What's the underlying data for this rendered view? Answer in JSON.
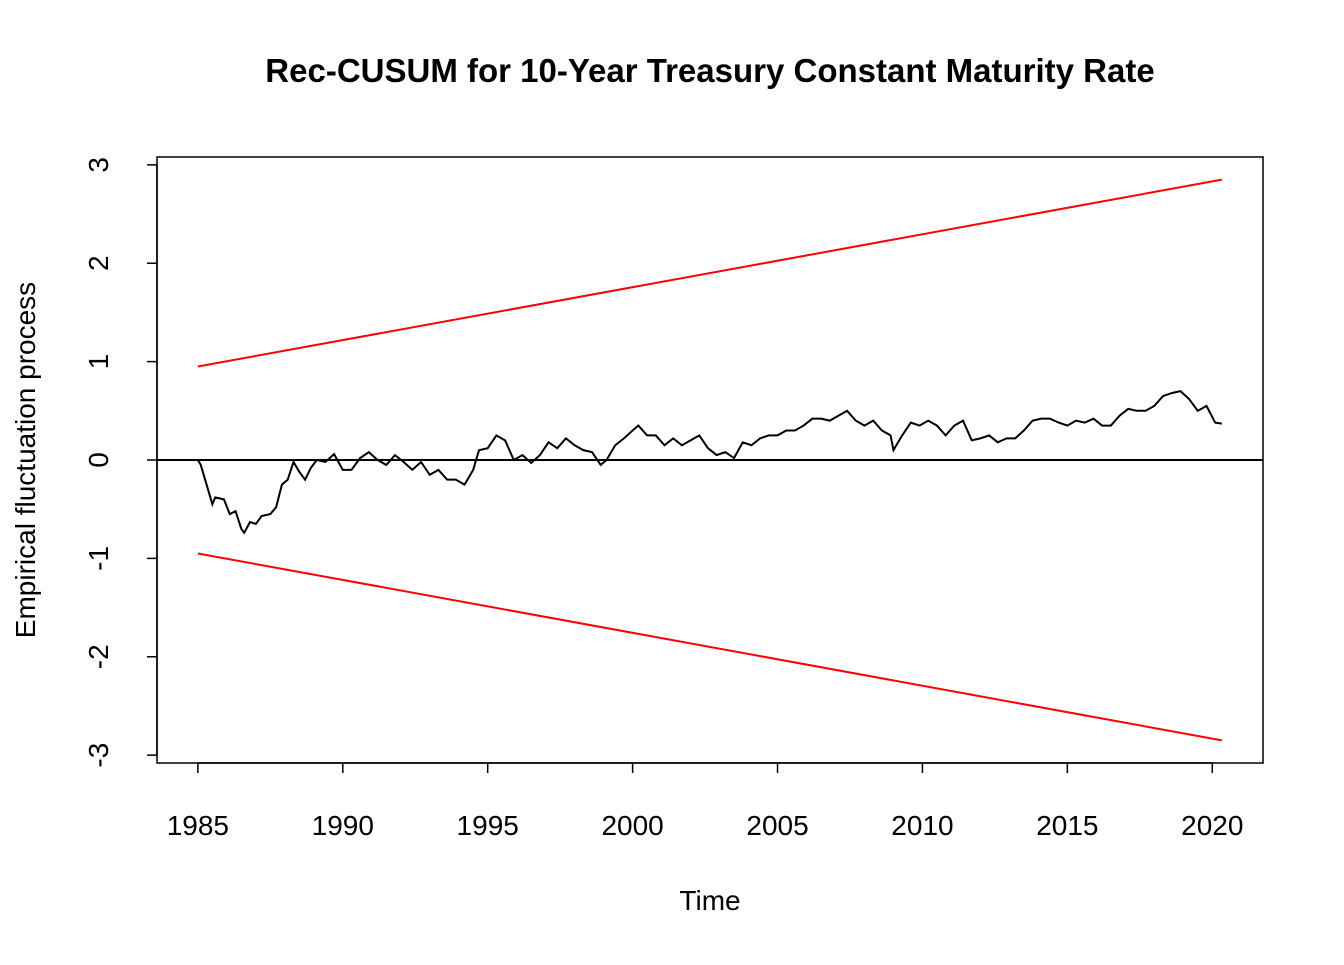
{
  "chart_data": {
    "type": "line",
    "title": "Rec-CUSUM for 10-Year Treasury Constant Maturity Rate",
    "x_label": "Time",
    "y_label": "Empirical fluctuation process",
    "xlim": [
      1983.59,
      2021.75
    ],
    "ylim": [
      -3.08,
      3.08
    ],
    "xticks": [
      1985,
      1990,
      1995,
      2000,
      2005,
      2010,
      2015,
      2020
    ],
    "yticks": [
      -3,
      -2,
      -1,
      0,
      1,
      2,
      3
    ],
    "hline": 0,
    "series": [
      {
        "color": "#000000",
        "x": [
          1985.0,
          1985.1,
          1985.3,
          1985.5,
          1985.6,
          1985.9,
          1986.1,
          1986.3,
          1986.5,
          1986.6,
          1986.8,
          1987.0,
          1987.2,
          1987.5,
          1987.7,
          1987.9,
          1988.1,
          1988.3,
          1988.5,
          1988.7,
          1988.9,
          1989.1,
          1989.4,
          1989.7,
          1990.0,
          1990.3,
          1990.6,
          1990.9,
          1991.2,
          1991.5,
          1991.8,
          1992.1,
          1992.4,
          1992.7,
          1993.0,
          1993.3,
          1993.6,
          1993.9,
          1994.2,
          1994.5,
          1994.7,
          1995.0,
          1995.3,
          1995.6,
          1995.9,
          1996.2,
          1996.5,
          1996.8,
          1997.1,
          1997.4,
          1997.7,
          1998.0,
          1998.3,
          1998.6,
          1998.9,
          1999.1,
          1999.4,
          1999.7,
          2000.0,
          2000.2,
          2000.5,
          2000.8,
          2001.1,
          2001.4,
          2001.7,
          2002.0,
          2002.3,
          2002.6,
          2002.9,
          2003.2,
          2003.5,
          2003.8,
          2004.1,
          2004.4,
          2004.7,
          2005.0,
          2005.3,
          2005.6,
          2005.9,
          2006.2,
          2006.5,
          2006.8,
          2007.1,
          2007.4,
          2007.7,
          2008.0,
          2008.3,
          2008.6,
          2008.9,
          2009.0,
          2009.3,
          2009.6,
          2009.9,
          2010.2,
          2010.5,
          2010.8,
          2011.1,
          2011.4,
          2011.7,
          2012.0,
          2012.3,
          2012.6,
          2012.9,
          2013.2,
          2013.5,
          2013.8,
          2014.1,
          2014.4,
          2014.7,
          2015.0,
          2015.3,
          2015.6,
          2015.9,
          2016.2,
          2016.5,
          2016.8,
          2017.1,
          2017.4,
          2017.7,
          2018.0,
          2018.3,
          2018.6,
          2018.9,
          2019.2,
          2019.5,
          2019.8,
          2020.1,
          2020.33
        ],
        "values": [
          0,
          -0.05,
          -0.25,
          -0.45,
          -0.38,
          -0.4,
          -0.55,
          -0.52,
          -0.7,
          -0.74,
          -0.63,
          -0.65,
          -0.57,
          -0.55,
          -0.48,
          -0.25,
          -0.2,
          -0.02,
          -0.12,
          -0.2,
          -0.08,
          0.0,
          -0.02,
          0.06,
          -0.1,
          -0.1,
          0.02,
          0.08,
          0.0,
          -0.05,
          0.05,
          -0.02,
          -0.1,
          -0.02,
          -0.15,
          -0.1,
          -0.2,
          -0.2,
          -0.25,
          -0.1,
          0.1,
          0.12,
          0.25,
          0.2,
          0.0,
          0.05,
          -0.03,
          0.05,
          0.18,
          0.12,
          0.22,
          0.15,
          0.1,
          0.08,
          -0.05,
          0.0,
          0.15,
          0.22,
          0.3,
          0.35,
          0.25,
          0.25,
          0.15,
          0.22,
          0.15,
          0.2,
          0.25,
          0.12,
          0.05,
          0.08,
          0.02,
          0.18,
          0.15,
          0.22,
          0.25,
          0.25,
          0.3,
          0.3,
          0.35,
          0.42,
          0.42,
          0.4,
          0.45,
          0.5,
          0.4,
          0.35,
          0.4,
          0.3,
          0.25,
          0.1,
          0.25,
          0.38,
          0.35,
          0.4,
          0.35,
          0.25,
          0.35,
          0.4,
          0.2,
          0.22,
          0.25,
          0.18,
          0.22,
          0.22,
          0.3,
          0.4,
          0.42,
          0.42,
          0.38,
          0.35,
          0.4,
          0.38,
          0.42,
          0.35,
          0.35,
          0.45,
          0.52,
          0.5,
          0.5,
          0.55,
          0.65,
          0.68,
          0.7,
          0.62,
          0.5,
          0.55,
          0.38,
          0.37
        ]
      },
      {
        "color": "#ff0000",
        "x": [
          1985.0,
          2020.33
        ],
        "values": [
          0.95,
          2.85
        ]
      },
      {
        "color": "#ff0000",
        "x": [
          1985.0,
          2020.33
        ],
        "values": [
          -0.95,
          -2.85
        ]
      }
    ]
  }
}
